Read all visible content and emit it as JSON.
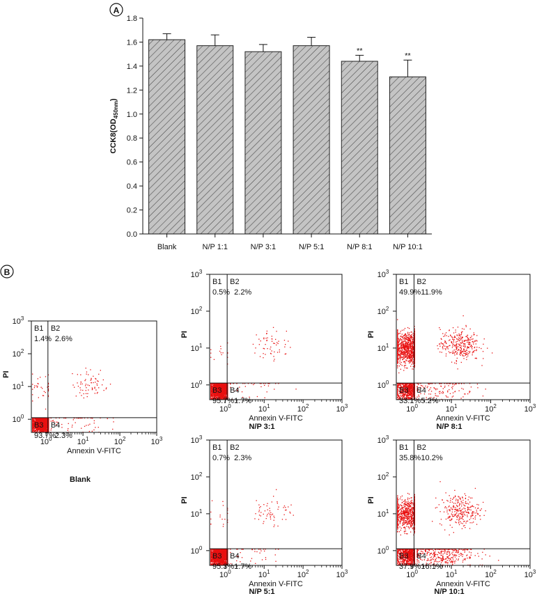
{
  "panel_labels": {
    "a": "A",
    "b": "B"
  },
  "chart_data": [
    {
      "type": "bar",
      "title": "",
      "ylabel_main": "CCK8(OD",
      "ylabel_sub": "450nm",
      "ylabel_close": ")",
      "xlabel": "",
      "ylim": [
        0,
        1.8
      ],
      "yticks": [
        "0.0",
        "0.2",
        "0.4",
        "0.6",
        "0.8",
        "1.0",
        "1.2",
        "1.4",
        "1.6",
        "1.8"
      ],
      "categories": [
        "Blank",
        "N/P 1:1",
        "N/P 3:1",
        "N/P 5:1",
        "N/P 8:1",
        "N/P 10:1"
      ],
      "values": [
        1.62,
        1.57,
        1.52,
        1.57,
        1.44,
        1.31
      ],
      "errors": [
        0.05,
        0.09,
        0.06,
        0.07,
        0.05,
        0.14
      ],
      "significance": [
        "",
        "",
        "",
        "",
        "**",
        "**"
      ],
      "colors": {
        "fill": "#c4c4c4",
        "hatch": "#444444",
        "stroke": "#222222"
      }
    },
    {
      "type": "scatter",
      "subtype": "flow-cytometry-quadrant",
      "xlabel": "Annexin V-FITC",
      "ylabel": "PI",
      "axis": "log",
      "decades": [
        "10",
        "10",
        "10",
        "10"
      ],
      "exponents": [
        "0",
        "1",
        "2",
        "3"
      ],
      "dot_color": "#e81010",
      "plots": [
        {
          "name": "Blank",
          "quadrants": {
            "B1": "1.4%",
            "B2": "2.6%",
            "B3": "93.7%",
            "B4": "2.3%"
          }
        },
        {
          "name": "N/P 3:1",
          "quadrants": {
            "B1": "0.5%",
            "B2": "2.2%",
            "B3": "95.7%",
            "B4": "1.7%"
          }
        },
        {
          "name": "N/P 8:1",
          "quadrants": {
            "B1": "49.9%",
            "B2": "11.9%",
            "B3": "33.1%",
            "B4": "5.2%"
          }
        },
        {
          "name": "N/P 5:1",
          "quadrants": {
            "B1": "0.7%",
            "B2": "2.3%",
            "B3": "95.3%",
            "B4": "1.7%"
          }
        },
        {
          "name": "N/P 10:1",
          "quadrants": {
            "B1": "35.8%",
            "B2": "10.2%",
            "B3": "37.9%",
            "B4": "16.1%"
          }
        }
      ]
    }
  ]
}
